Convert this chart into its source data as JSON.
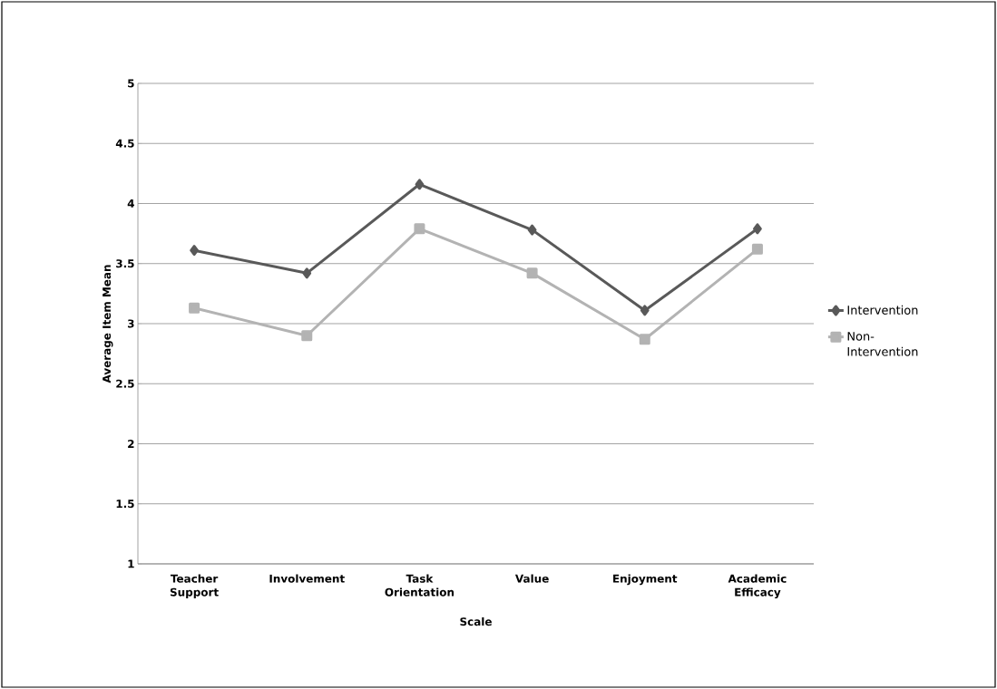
{
  "chart_data": {
    "type": "line",
    "xlabel": "Scale",
    "ylabel": "Average Item Mean",
    "categories": [
      "Teacher Support",
      "Involvement",
      "Task Orientation",
      "Value",
      "Enjoyment",
      "Academic Efficacy"
    ],
    "series": [
      {
        "name": "Intervention",
        "color": "#595959",
        "marker": "diamond",
        "values": [
          3.61,
          3.42,
          4.16,
          3.78,
          3.11,
          3.79
        ]
      },
      {
        "name": "Non-Intervention",
        "color": "#b3b3b3",
        "marker": "square",
        "values": [
          3.13,
          2.9,
          3.79,
          3.42,
          2.87,
          3.62
        ]
      }
    ],
    "ylim": [
      1,
      5
    ],
    "yticks": [
      1,
      1.5,
      2,
      2.5,
      3,
      3.5,
      4,
      4.5,
      5
    ],
    "grid": "y",
    "legend": "right",
    "line_style": "solid"
  }
}
